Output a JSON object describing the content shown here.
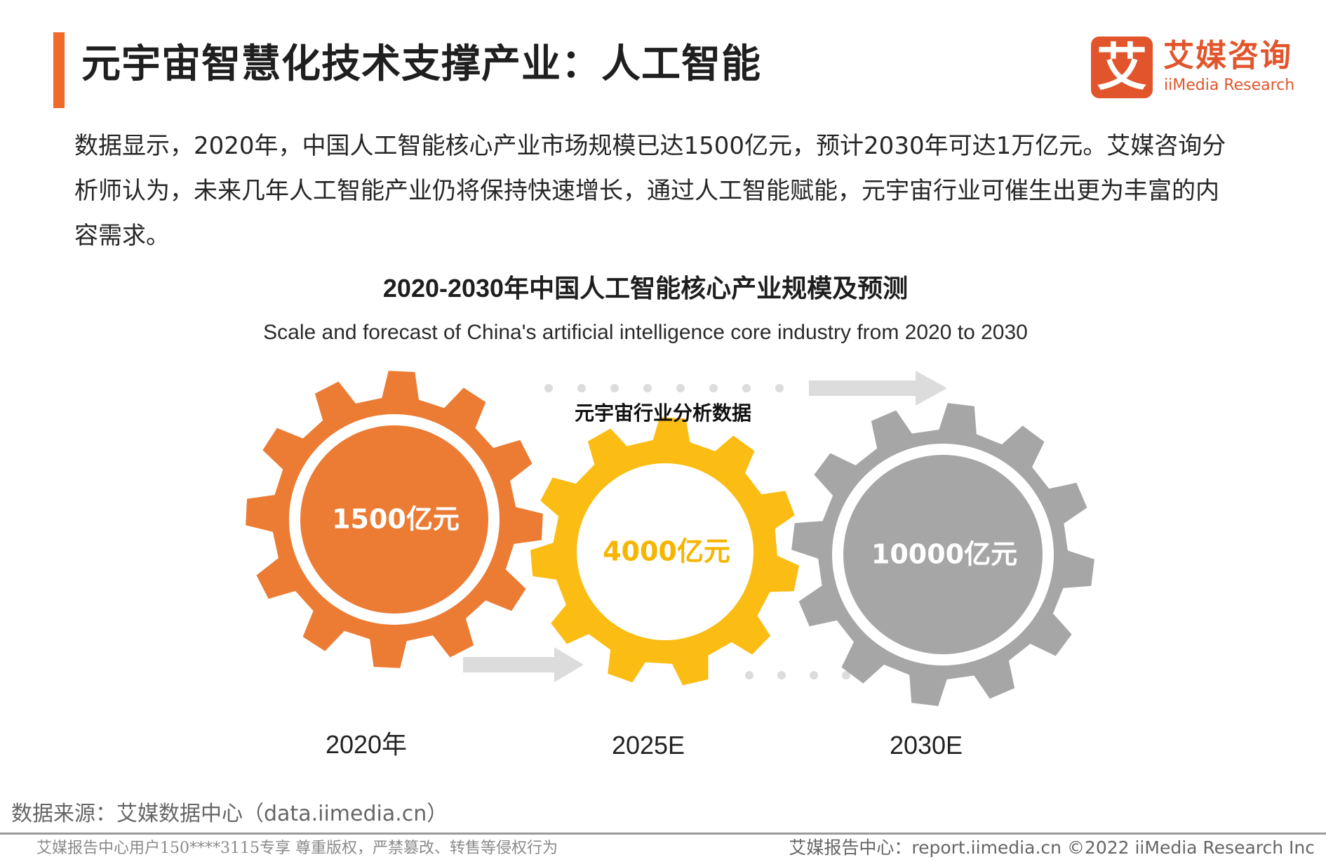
{
  "header": {
    "title": "元宇宙智慧化技术支撑产业：人工智能",
    "accent_color": "#f06a2a"
  },
  "logo": {
    "mark": "艾",
    "name_cn": "艾媒咨询",
    "name_en": "iiMedia Research",
    "color": "#e2552c"
  },
  "summary": "数据显示，2020年，中国人工智能核心产业市场规模已达1500亿元，预计2030年可达1万亿元。艾媒咨询分析师认为，未来几年人工智能产业仍将保持快速增长，通过人工智能赋能，元宇宙行业可催生出更为丰富的内容需求。",
  "chart_data": {
    "type": "bar",
    "title": "2020-2030年中国人工智能核心产业规模及预测",
    "subtitle": "Scale and forecast of China's artificial intelligence core industry from 2020 to 2030",
    "categories": [
      "2020年",
      "2025E",
      "2030E"
    ],
    "values": [
      1500,
      4000,
      10000
    ],
    "unit": "亿元",
    "value_labels": [
      "1500亿元",
      "4000亿元",
      "10000亿元"
    ],
    "colors": [
      "#ec7c34",
      "#fbbd13",
      "#a6a6a6"
    ],
    "value_label_colors": [
      "#ffffff",
      "#f6b500",
      "#ffffff"
    ],
    "annotation": "元宇宙行业分析数据"
  },
  "source": "数据来源：艾媒数据中心（data.iimedia.cn）",
  "footer": {
    "left": "艾媒报告中心用户150****3115专享 尊重版权，严禁篡改、转售等侵权行为",
    "right": "艾媒报告中心：report.iimedia.cn   ©2022  iiMedia Research  Inc"
  }
}
